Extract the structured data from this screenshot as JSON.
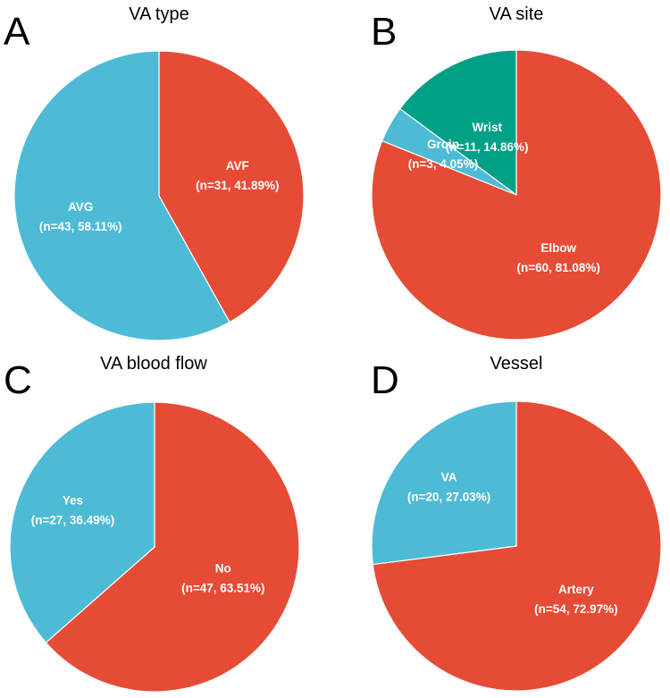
{
  "figure": {
    "panels": [
      {
        "letter": "A",
        "title": "VA type"
      },
      {
        "letter": "B",
        "title": "VA site"
      },
      {
        "letter": "C",
        "title": "VA blood flow"
      },
      {
        "letter": "D",
        "title": "Vessel"
      }
    ]
  },
  "colors": {
    "red": "#E64B35",
    "blue": "#4DBBD5",
    "green": "#00A087",
    "edge": "#ffffff"
  },
  "chart_data": [
    {
      "type": "pie",
      "title": "VA type",
      "start": "12 o'clock",
      "direction": "clockwise",
      "slices": [
        {
          "name": "AVF",
          "value": 31,
          "percent": 41.89,
          "label": "(n=31, 41.89%)",
          "color": "#E64B35"
        },
        {
          "name": "AVG",
          "value": 43,
          "percent": 58.11,
          "label": "(n=43, 58.11%)",
          "color": "#4DBBD5"
        }
      ]
    },
    {
      "type": "pie",
      "title": "VA site",
      "start": "12 o'clock",
      "direction": "clockwise",
      "slices": [
        {
          "name": "Elbow",
          "value": 60,
          "percent": 81.08,
          "label": "(n=60, 81.08%)",
          "color": "#E64B35"
        },
        {
          "name": "Groin",
          "value": 3,
          "percent": 4.05,
          "label": "(n=3, 4.05%)",
          "color": "#4DBBD5"
        },
        {
          "name": "Wrist",
          "value": 11,
          "percent": 14.86,
          "label": "(n=11, 14.86%)",
          "color": "#00A087"
        }
      ]
    },
    {
      "type": "pie",
      "title": "VA blood flow",
      "start": "12 o'clock",
      "direction": "clockwise",
      "slices": [
        {
          "name": "No",
          "value": 47,
          "percent": 63.51,
          "label": "(n=47, 63.51%)",
          "color": "#E64B35"
        },
        {
          "name": "Yes",
          "value": 27,
          "percent": 36.49,
          "label": "(n=27, 36.49%)",
          "color": "#4DBBD5"
        }
      ]
    },
    {
      "type": "pie",
      "title": "Vessel",
      "start": "12 o'clock",
      "direction": "clockwise",
      "slices": [
        {
          "name": "Artery",
          "value": 54,
          "percent": 72.97,
          "label": "(n=54, 72.97%)",
          "color": "#E64B35"
        },
        {
          "name": "VA",
          "value": 20,
          "percent": 27.03,
          "label": "(n=20, 27.03%)",
          "color": "#4DBBD5"
        }
      ]
    }
  ]
}
